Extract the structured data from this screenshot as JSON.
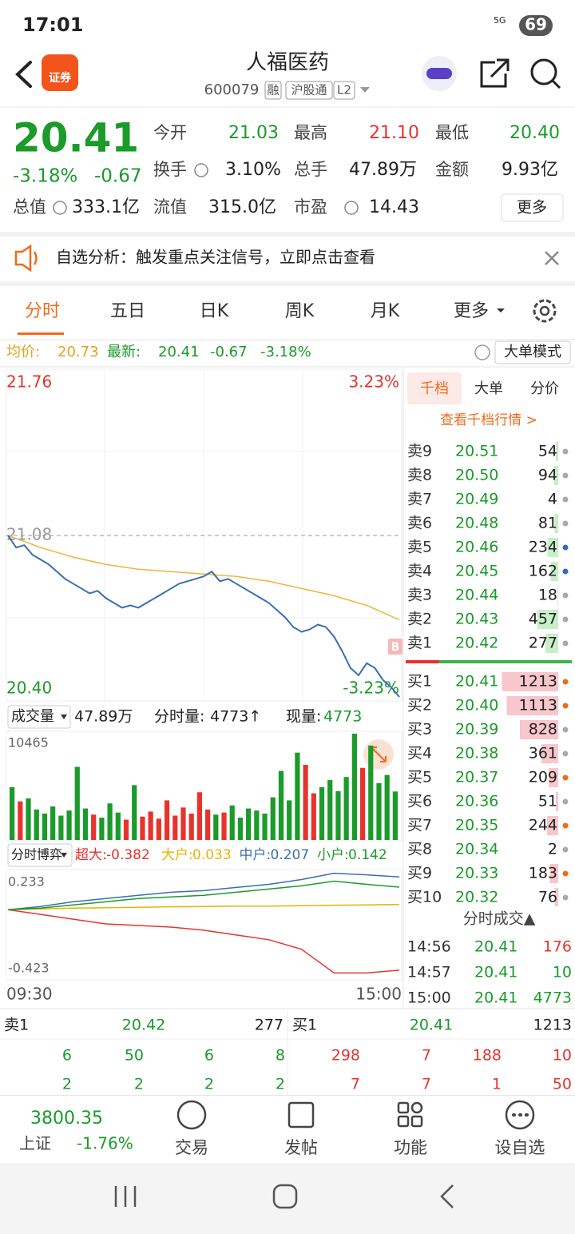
{
  "status_bar": {
    "time": "17:01",
    "network": "5G",
    "battery": "69"
  },
  "header": {
    "logo": "证券",
    "title": "人福医药",
    "code": "600079",
    "tags": [
      "融",
      "沪股通",
      "L2"
    ]
  },
  "quote": {
    "price": "20.41",
    "change_pct": "-3.18%",
    "change": "-0.67",
    "fields": [
      {
        "label": "今开",
        "value": "21.03",
        "color": "#1a9b2a"
      },
      {
        "label": "最高",
        "value": "21.10",
        "color": "#e8332d"
      },
      {
        "label": "最低",
        "value": "20.40",
        "color": "#1a9b2a"
      },
      {
        "label": "换手",
        "value": "3.10%",
        "color": "#222222"
      },
      {
        "label": "总手",
        "value": "47.89万",
        "color": "#222222"
      },
      {
        "label": "金额",
        "value": "9.93亿",
        "color": "#222222"
      },
      {
        "label": "总值",
        "value": "333.1亿",
        "color": "#222222"
      },
      {
        "label": "流值",
        "value": "315.0亿",
        "color": "#222222"
      },
      {
        "label": "市盈",
        "value": "14.43",
        "color": "#222222"
      }
    ],
    "more": "更多"
  },
  "banner": "自选分析：触发重点关注信号，立即点击查看",
  "tabs": {
    "items": [
      "分时",
      "五日",
      "日K",
      "周K",
      "月K",
      "更多"
    ],
    "active": 0
  },
  "summary": {
    "avg_label": "均价:",
    "avg": "20.73",
    "latest_label": "最新:",
    "latest": "20.41",
    "change": "-0.67",
    "change_pct": "-3.18%",
    "mode_button": "大单模式"
  },
  "price_chart": {
    "top_price": "21.76",
    "top_pct": "3.23%",
    "prev_close_label": "21.08",
    "bottom_price": "20.40",
    "bottom_pct": "-3.23%",
    "ylim": [
      20.4,
      21.76
    ],
    "prev_close": 21.08,
    "price_color": "#3a6fb0",
    "avg_color": "#f0b43c",
    "price": [
      21.08,
      21.03,
      21.04,
      21.0,
      20.98,
      20.96,
      20.93,
      20.9,
      20.88,
      20.86,
      20.84,
      20.85,
      20.82,
      20.8,
      20.78,
      20.79,
      20.78,
      20.8,
      20.82,
      20.84,
      20.86,
      20.88,
      20.89,
      20.9,
      20.91,
      20.93,
      20.89,
      20.9,
      20.88,
      20.86,
      20.84,
      20.82,
      20.8,
      20.77,
      20.74,
      20.7,
      20.68,
      20.69,
      20.71,
      20.7,
      20.66,
      20.6,
      20.53,
      20.5,
      20.55,
      20.53,
      20.48,
      20.45,
      20.41
    ],
    "avg": [
      21.08,
      21.03,
      20.99,
      20.96,
      20.94,
      20.93,
      20.92,
      20.91,
      20.89,
      20.86,
      20.83,
      20.79,
      20.73
    ]
  },
  "volume_panel": {
    "selector": "成交量",
    "total": "47.89万",
    "period_label": "分时量:",
    "period": "4773↑",
    "current_label": "现量:",
    "current": "4773",
    "max_label": "10465",
    "ylim": [
      0,
      10465
    ],
    "up_color": "#e8332d",
    "down_color": "#1a9b2a",
    "values": [
      5200,
      3800,
      4100,
      3000,
      2600,
      3300,
      2400,
      2900,
      7200,
      3100,
      2500,
      2200,
      3600,
      2700,
      2000,
      5400,
      2300,
      2800,
      2100,
      3900,
      2400,
      3200,
      2600,
      4700,
      3000,
      2500,
      2700,
      3400,
      2200,
      3100,
      2900,
      2600,
      4200,
      6800,
      3900,
      8600,
      7400,
      4600,
      5200,
      5900,
      4800,
      6200,
      10465,
      7100,
      9300,
      5600,
      6400,
      4773
    ]
  },
  "flow_panel": {
    "selector": "分时博弈",
    "top_label": "0.233",
    "bottom_label": "-0.423",
    "ylim": [
      -0.423,
      0.233
    ],
    "series": [
      {
        "name": "超大:",
        "value": "-0.382",
        "color": "#e8332d",
        "values": [
          0,
          -0.03,
          -0.06,
          -0.09,
          -0.1,
          -0.11,
          -0.13,
          -0.16,
          -0.19,
          -0.25,
          -0.4,
          -0.4,
          -0.382
        ]
      },
      {
        "name": "大户:",
        "value": "0.033",
        "color": "#e6b400",
        "values": [
          0,
          0.005,
          0.01,
          0.012,
          0.015,
          0.018,
          0.02,
          0.022,
          0.022,
          0.025,
          0.028,
          0.03,
          0.033
        ]
      },
      {
        "name": "中户:",
        "value": "0.207",
        "color": "#3a6fb0",
        "values": [
          0,
          0.02,
          0.05,
          0.07,
          0.09,
          0.11,
          0.12,
          0.14,
          0.16,
          0.19,
          0.23,
          0.22,
          0.207
        ]
      },
      {
        "name": "小户:",
        "value": "0.142",
        "color": "#1a9b2a",
        "values": [
          0,
          0.01,
          0.03,
          0.05,
          0.07,
          0.08,
          0.09,
          0.11,
          0.13,
          0.15,
          0.18,
          0.16,
          0.142
        ]
      }
    ]
  },
  "time_axis": {
    "start": "09:30",
    "end": "15:00"
  },
  "order_book": {
    "tabs": [
      "千档",
      "大单",
      "分价"
    ],
    "link": "查看千档行情 >",
    "asks": [
      {
        "level": "卖9",
        "price": "20.51",
        "volume": 54,
        "dot": "#aaaaaa"
      },
      {
        "level": "卖8",
        "price": "20.50",
        "volume": 94,
        "dot": "#aaaaaa"
      },
      {
        "level": "卖7",
        "price": "20.49",
        "volume": 4,
        "dot": "#aaaaaa"
      },
      {
        "level": "卖6",
        "price": "20.48",
        "volume": 81,
        "dot": "#aaaaaa"
      },
      {
        "level": "卖5",
        "price": "20.46",
        "volume": 234,
        "dot": "#2f6fc0"
      },
      {
        "level": "卖4",
        "price": "20.45",
        "volume": 162,
        "dot": "#2f6fc0"
      },
      {
        "level": "卖3",
        "price": "20.44",
        "volume": 18,
        "dot": "#aaaaaa"
      },
      {
        "level": "卖2",
        "price": "20.43",
        "volume": 457,
        "dot": "#aaaaaa"
      },
      {
        "level": "卖1",
        "price": "20.42",
        "volume": 277,
        "dot": "#aaaaaa"
      }
    ],
    "bids": [
      {
        "level": "买1",
        "price": "20.41",
        "volume": 1213,
        "dot": "#f06a1d"
      },
      {
        "level": "买2",
        "price": "20.40",
        "volume": 1113,
        "dot": "#f06a1d"
      },
      {
        "level": "买3",
        "price": "20.39",
        "volume": 828,
        "dot": "#aaaaaa"
      },
      {
        "level": "买4",
        "price": "20.38",
        "volume": 361,
        "dot": "#aaaaaa"
      },
      {
        "level": "买5",
        "price": "20.37",
        "volume": 209,
        "dot": "#f06a1d"
      },
      {
        "level": "买6",
        "price": "20.36",
        "volume": 51,
        "dot": "#aaaaaa"
      },
      {
        "level": "买7",
        "price": "20.35",
        "volume": 244,
        "dot": "#f06a1d"
      },
      {
        "level": "买8",
        "price": "20.34",
        "volume": 2,
        "dot": "#aaaaaa"
      },
      {
        "level": "买9",
        "price": "20.33",
        "volume": 183,
        "dot": "#f06a1d"
      },
      {
        "level": "买10",
        "price": "20.32",
        "volume": 76,
        "dot": "#aaaaaa"
      }
    ]
  },
  "trades": {
    "title": "分时成交▲",
    "rows": [
      {
        "time": "14:56",
        "price": "20.41",
        "volume": "176",
        "color": "#e8332d"
      },
      {
        "time": "14:57",
        "price": "20.41",
        "volume": "10",
        "color": "#1a9b2a"
      },
      {
        "time": "15:00",
        "price": "20.41",
        "volume": "4773",
        "color": "#1a9b2a"
      }
    ]
  },
  "depth_summary": {
    "ask_label": "卖1",
    "ask_price": "20.42",
    "ask_volume": "277",
    "bid_label": "买1",
    "bid_price": "20.41",
    "bid_volume": "1213",
    "ask_rows": [
      [
        "6",
        "50",
        "6",
        "8"
      ],
      [
        "2",
        "2",
        "2",
        "2"
      ]
    ],
    "bid_rows": [
      [
        "298",
        "7",
        "188",
        "10"
      ],
      [
        "7",
        "7",
        "1",
        "50"
      ]
    ]
  },
  "bottom_nav": {
    "index_value": "3800.35",
    "index_name": "上证",
    "index_change": "-1.76%",
    "items": [
      "交易",
      "发帖",
      "功能",
      "设自选"
    ]
  }
}
